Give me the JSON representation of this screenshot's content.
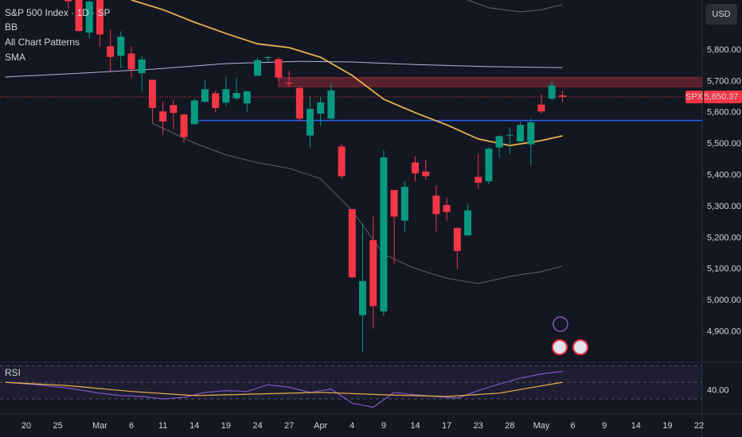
{
  "chart_data": {
    "type": "candlestick",
    "title": "S&P 500 Index · 1D · SP",
    "indicators": [
      "BB",
      "All Chart Patterns",
      "SMA"
    ],
    "currency": "USD",
    "symbol": "SPX",
    "last_price": {
      "value": 5650.37,
      "label": "5,650.37"
    },
    "up_color": "#089981",
    "down_color": "#f23645",
    "xlim": [
      -2.5,
      64.3
    ],
    "xticks": [
      {
        "value": 0,
        "label": "20"
      },
      {
        "value": 3,
        "label": "25"
      },
      {
        "value": 7,
        "label": "Mar"
      },
      {
        "value": 10,
        "label": "6"
      },
      {
        "value": 13,
        "label": "11"
      },
      {
        "value": 16,
        "label": "14"
      },
      {
        "value": 19,
        "label": "19"
      },
      {
        "value": 22,
        "label": "24"
      },
      {
        "value": 25,
        "label": "27"
      },
      {
        "value": 28,
        "label": "Apr"
      },
      {
        "value": 31,
        "label": "4"
      },
      {
        "value": 34,
        "label": "9"
      },
      {
        "value": 37,
        "label": "14"
      },
      {
        "value": 40,
        "label": "17"
      },
      {
        "value": 43,
        "label": "23"
      },
      {
        "value": 46,
        "label": "28"
      },
      {
        "value": 49,
        "label": "May"
      },
      {
        "value": 52,
        "label": "6"
      },
      {
        "value": 55,
        "label": "9"
      },
      {
        "value": 58,
        "label": "14"
      },
      {
        "value": 61,
        "label": "19"
      },
      {
        "value": 64,
        "label": "22"
      }
    ],
    "ylim": [
      4805,
      5960
    ],
    "yticks": [
      {
        "value": 4900,
        "label": "4,900.00"
      },
      {
        "value": 5000,
        "label": "5,000.00"
      },
      {
        "value": 5100,
        "label": "5,100.00"
      },
      {
        "value": 5200,
        "label": "5,200.00"
      },
      {
        "value": 5300,
        "label": "5,300.00"
      },
      {
        "value": 5400,
        "label": "5,400.00"
      },
      {
        "value": 5500,
        "label": "5,500.00"
      },
      {
        "value": 5600,
        "label": "5,600.00"
      },
      {
        "value": 5700,
        "label": "5,700.00"
      },
      {
        "value": 5800,
        "label": "5,800.00"
      }
    ],
    "x": [
      4,
      5,
      6,
      7,
      8,
      9,
      10,
      11,
      12,
      13,
      14,
      15,
      16,
      17,
      18,
      19,
      20,
      21,
      22,
      23,
      24,
      25,
      26,
      27,
      28,
      29,
      30,
      31,
      32,
      33,
      34,
      35,
      36,
      37,
      38,
      39,
      40,
      41,
      42,
      43,
      44,
      45,
      46,
      47,
      48,
      49,
      50,
      51
    ],
    "open": [
      5970,
      5981,
      5856,
      5968,
      5812,
      5782,
      5789,
      5726,
      5705,
      5604,
      5624,
      5594,
      5563,
      5635,
      5662,
      5632,
      5646,
      5630,
      5718,
      5775,
      5771,
      5696,
      5679,
      5527,
      5597,
      5581,
      5492,
      5292,
      4953,
      5193,
      4965,
      5353,
      5255,
      5441,
      5412,
      5335,
      5305,
      5232,
      5208,
      5395,
      5381,
      5489,
      5529,
      5508,
      5499,
      5626,
      5645,
      5655
    ],
    "high": [
      6009,
      5994,
      5959,
      5986,
      5865,
      5860,
      5812,
      5783,
      5705,
      5636,
      5642,
      5598,
      5645,
      5703,
      5670,
      5715,
      5711,
      5670,
      5775,
      5782,
      5777,
      5733,
      5685,
      5651,
      5650,
      5695,
      5500,
      5292,
      5246,
      5268,
      5481,
      5353,
      5381,
      5460,
      5450,
      5367,
      5328,
      5232,
      5309,
      5469,
      5489,
      5528,
      5553,
      5571,
      5581,
      5659,
      5700,
      5670
    ],
    "low": [
      5932,
      5858,
      5837,
      5810,
      5732,
      5742,
      5711,
      5667,
      5565,
      5529,
      5547,
      5505,
      5563,
      5632,
      5601,
      5622,
      5640,
      5603,
      5718,
      5762,
      5699,
      5681,
      5572,
      5489,
      5558,
      5578,
      5390,
      5070,
      4835,
      4910,
      4950,
      5115,
      5220,
      5379,
      5386,
      5220,
      5255,
      5101,
      5208,
      5356,
      5371,
      5455,
      5469,
      5506,
      5433,
      5597,
      5640,
      5633
    ],
    "close": [
      5956,
      5861,
      5955,
      5850,
      5778,
      5843,
      5739,
      5770,
      5615,
      5572,
      5599,
      5522,
      5639,
      5675,
      5615,
      5675,
      5663,
      5668,
      5768,
      5777,
      5712,
      5693,
      5581,
      5612,
      5633,
      5671,
      5397,
      5074,
      5062,
      4982,
      5457,
      5268,
      5363,
      5406,
      5397,
      5276,
      5283,
      5158,
      5288,
      5376,
      5485,
      5525,
      5529,
      5561,
      5569,
      5604,
      5687,
      5650.37
    ],
    "overlays": [
      {
        "color": "#e8b04a",
        "x": [
          10,
          13,
          16,
          19,
          22,
          25,
          28,
          31,
          34,
          37,
          40,
          43,
          46,
          49,
          51
        ],
        "values": [
          5960,
          5929,
          5889,
          5853,
          5820,
          5808,
          5777,
          5719,
          5643,
          5600,
          5561,
          5516,
          5495,
          5511,
          5526
        ]
      },
      {
        "color": "#b2b5d6",
        "x": [
          -2,
          5,
          12,
          19,
          26,
          31,
          37,
          44,
          51
        ],
        "values": [
          5714,
          5726,
          5739,
          5757,
          5764,
          5762,
          5754,
          5747,
          5744
        ]
      },
      {
        "color": "#5d606b",
        "x": [
          42,
          44,
          47,
          49,
          51
        ],
        "values": [
          5960,
          5935,
          5922,
          5929,
          5945
        ]
      },
      {
        "color": "#5d606b",
        "x": [
          12,
          16,
          19,
          22,
          25,
          28,
          31,
          34,
          37,
          40,
          43,
          46,
          49,
          51
        ],
        "values": [
          5566,
          5503,
          5465,
          5440,
          5422,
          5389,
          5287,
          5148,
          5102,
          5071,
          5054,
          5077,
          5092,
          5110
        ]
      }
    ],
    "levels": [
      {
        "value": 5575,
        "from": 16,
        "color": "#2962ff"
      }
    ],
    "zones": [
      {
        "low": 5683,
        "high": 5712,
        "from": 24,
        "color": "#f23645"
      }
    ],
    "rsi": {
      "label": "RSI",
      "ylim": [
        13,
        73
      ],
      "yticks": [
        {
          "value": 40,
          "label": "40.00"
        }
      ],
      "bands": [
        30,
        50,
        70
      ],
      "series": [
        {
          "color": "#7e57c2",
          "x": [
            -2,
            1,
            4,
            7,
            9,
            11,
            13,
            15,
            17,
            19,
            21,
            23,
            25,
            27,
            29,
            31,
            33,
            35,
            37,
            39,
            41,
            43,
            45,
            47,
            49,
            51
          ],
          "values": [
            50,
            47,
            43,
            37,
            34,
            33,
            30,
            32,
            38,
            40,
            39,
            47,
            44,
            38,
            42,
            25,
            20,
            38,
            35,
            33,
            31,
            40,
            48,
            55,
            60,
            63
          ]
        },
        {
          "color": "#e8b04a",
          "x": [
            -2,
            4,
            10,
            16,
            22,
            28,
            34,
            40,
            45,
            51
          ],
          "values": [
            50,
            46,
            39,
            34,
            36,
            38,
            35,
            33,
            37,
            50
          ]
        }
      ]
    }
  }
}
